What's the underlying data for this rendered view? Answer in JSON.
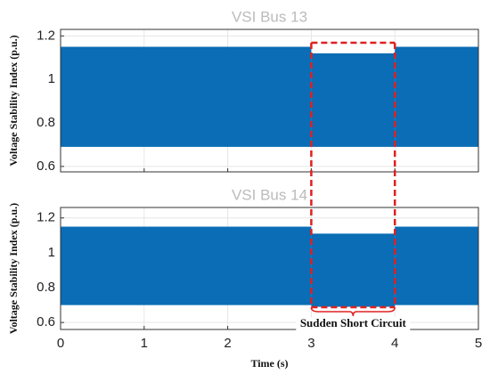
{
  "chart_data": [
    {
      "type": "band",
      "title": "VSI Bus 13",
      "y_label": "Voltage Stability Index (p.u.)",
      "color": "#0a6db5",
      "segments": [
        {
          "x": [
            0,
            3
          ],
          "upper": 1.15,
          "lower": 0.69
        },
        {
          "x": [
            3,
            4
          ],
          "upper": 1.12,
          "lower": 0.69
        },
        {
          "x": [
            4,
            5
          ],
          "upper": 1.15,
          "lower": 0.69
        }
      ],
      "xlim": [
        0,
        5
      ],
      "xticks": [
        0,
        1,
        2,
        3,
        4,
        5
      ],
      "ylim": [
        0.575,
        1.23
      ],
      "yticks": [
        0.6,
        0.8,
        1,
        1.2
      ],
      "grid": true
    },
    {
      "type": "band",
      "title": "VSI Bus 14",
      "y_label": "Voltage Stability Index (p.u.)",
      "x_label": "Time (s)",
      "color": "#0a6db5",
      "segments": [
        {
          "x": [
            0,
            3
          ],
          "upper": 1.15,
          "lower": 0.7
        },
        {
          "x": [
            3,
            4
          ],
          "upper": 1.11,
          "lower": 0.69
        },
        {
          "x": [
            4,
            5
          ],
          "upper": 1.15,
          "lower": 0.7
        }
      ],
      "xlim": [
        0,
        5
      ],
      "xticks": [
        0,
        1,
        2,
        3,
        4,
        5
      ],
      "ylim": [
        0.56,
        1.26
      ],
      "yticks": [
        0.6,
        0.8,
        1,
        1.2
      ],
      "grid": true,
      "annotation": {
        "text": "Sudden Short Circuit",
        "x": [
          3,
          4
        ],
        "color": "#e02020"
      }
    }
  ]
}
